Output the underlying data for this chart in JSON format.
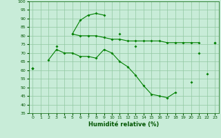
{
  "x": [
    0,
    1,
    2,
    3,
    4,
    5,
    6,
    7,
    8,
    9,
    10,
    11,
    12,
    13,
    14,
    15,
    16,
    17,
    18,
    19,
    20,
    21,
    22,
    23
  ],
  "line1_y": [
    61,
    null,
    null,
    74,
    null,
    81,
    89,
    92,
    93,
    92,
    null,
    81,
    null,
    74,
    null,
    null,
    null,
    null,
    null,
    null,
    null,
    null,
    null,
    null
  ],
  "line2_y": [
    61,
    null,
    null,
    null,
    null,
    81,
    80,
    80,
    80,
    79,
    78,
    78,
    77,
    77,
    77,
    77,
    77,
    76,
    76,
    76,
    76,
    76,
    null,
    76
  ],
  "line3_y": [
    61,
    null,
    66,
    72,
    70,
    70,
    68,
    68,
    67,
    72,
    70,
    65,
    62,
    57,
    51,
    46,
    45,
    44,
    47,
    null,
    53,
    null,
    58,
    null
  ],
  "line4_y": [
    null,
    null,
    null,
    null,
    null,
    null,
    null,
    null,
    null,
    null,
    null,
    null,
    null,
    null,
    null,
    null,
    null,
    null,
    null,
    null,
    null,
    70,
    null,
    76
  ],
  "bg_color": "#c8ecd8",
  "grid_color": "#90c8a0",
  "line_color": "#008000",
  "xlabel": "Humidité relative (%)",
  "ylim": [
    35,
    100
  ],
  "xlim": [
    -0.5,
    23.5
  ],
  "yticks": [
    35,
    40,
    45,
    50,
    55,
    60,
    65,
    70,
    75,
    80,
    85,
    90,
    95,
    100
  ],
  "xticks": [
    0,
    1,
    2,
    3,
    4,
    5,
    6,
    7,
    8,
    9,
    10,
    11,
    12,
    13,
    14,
    15,
    16,
    17,
    18,
    19,
    20,
    21,
    22,
    23
  ],
  "xlabel_fontsize": 6,
  "tick_fontsize": 4.5
}
